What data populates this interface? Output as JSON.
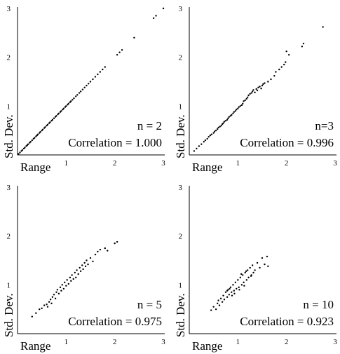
{
  "chart_data": [
    {
      "type": "scatter",
      "panel": "top-left",
      "xlabel": "Range",
      "ylabel": "Std. Dev.",
      "xlim": [
        0,
        3
      ],
      "ylim": [
        0,
        3
      ],
      "xticks": [
        "1",
        "2",
        "3"
      ],
      "yticks": [
        "1",
        "2",
        "3"
      ],
      "annotations": [
        "n = 2",
        "Correlation = 1.000"
      ],
      "grid": false,
      "points": [
        [
          0.02,
          0.02
        ],
        [
          0.05,
          0.05
        ],
        [
          0.08,
          0.08
        ],
        [
          0.1,
          0.1
        ],
        [
          0.13,
          0.13
        ],
        [
          0.15,
          0.15
        ],
        [
          0.18,
          0.18
        ],
        [
          0.2,
          0.2
        ],
        [
          0.22,
          0.22
        ],
        [
          0.25,
          0.25
        ],
        [
          0.27,
          0.27
        ],
        [
          0.3,
          0.3
        ],
        [
          0.33,
          0.33
        ],
        [
          0.35,
          0.35
        ],
        [
          0.38,
          0.38
        ],
        [
          0.4,
          0.4
        ],
        [
          0.42,
          0.42
        ],
        [
          0.45,
          0.45
        ],
        [
          0.47,
          0.47
        ],
        [
          0.5,
          0.5
        ],
        [
          0.52,
          0.52
        ],
        [
          0.55,
          0.55
        ],
        [
          0.57,
          0.57
        ],
        [
          0.6,
          0.6
        ],
        [
          0.62,
          0.62
        ],
        [
          0.65,
          0.65
        ],
        [
          0.67,
          0.67
        ],
        [
          0.7,
          0.7
        ],
        [
          0.72,
          0.72
        ],
        [
          0.75,
          0.75
        ],
        [
          0.78,
          0.78
        ],
        [
          0.8,
          0.8
        ],
        [
          0.83,
          0.83
        ],
        [
          0.85,
          0.85
        ],
        [
          0.88,
          0.88
        ],
        [
          0.9,
          0.9
        ],
        [
          0.93,
          0.93
        ],
        [
          0.95,
          0.95
        ],
        [
          0.98,
          0.98
        ],
        [
          1.0,
          1.0
        ],
        [
          1.03,
          1.03
        ],
        [
          1.05,
          1.05
        ],
        [
          1.08,
          1.08
        ],
        [
          1.1,
          1.1
        ],
        [
          1.13,
          1.13
        ],
        [
          1.16,
          1.16
        ],
        [
          1.2,
          1.2
        ],
        [
          1.23,
          1.23
        ],
        [
          1.27,
          1.27
        ],
        [
          1.3,
          1.3
        ],
        [
          1.34,
          1.34
        ],
        [
          1.38,
          1.38
        ],
        [
          1.42,
          1.42
        ],
        [
          1.46,
          1.46
        ],
        [
          1.5,
          1.5
        ],
        [
          1.55,
          1.55
        ],
        [
          1.6,
          1.6
        ],
        [
          1.65,
          1.65
        ],
        [
          1.7,
          1.7
        ],
        [
          1.75,
          1.75
        ],
        [
          1.8,
          1.8
        ],
        [
          2.05,
          2.05
        ],
        [
          2.1,
          2.1
        ],
        [
          2.15,
          2.15
        ],
        [
          2.4,
          2.4
        ],
        [
          2.8,
          2.8
        ],
        [
          2.85,
          2.85
        ],
        [
          3.0,
          3.0
        ]
      ]
    },
    {
      "type": "scatter",
      "panel": "top-right",
      "xlabel": "Range",
      "ylabel": "Std. Dev.",
      "xlim": [
        0,
        3
      ],
      "ylim": [
        0,
        3
      ],
      "xticks": [
        "1",
        "2",
        "3"
      ],
      "yticks": [
        "1",
        "2",
        "3"
      ],
      "annotations": [
        "n=3",
        "Correlation = 0.996"
      ],
      "grid": false,
      "points": [
        [
          0.1,
          0.08
        ],
        [
          0.15,
          0.13
        ],
        [
          0.2,
          0.18
        ],
        [
          0.25,
          0.22
        ],
        [
          0.3,
          0.27
        ],
        [
          0.33,
          0.3
        ],
        [
          0.37,
          0.33
        ],
        [
          0.4,
          0.37
        ],
        [
          0.43,
          0.4
        ],
        [
          0.46,
          0.42
        ],
        [
          0.5,
          0.45
        ],
        [
          0.52,
          0.48
        ],
        [
          0.55,
          0.5
        ],
        [
          0.58,
          0.53
        ],
        [
          0.6,
          0.56
        ],
        [
          0.63,
          0.58
        ],
        [
          0.66,
          0.6
        ],
        [
          0.68,
          0.63
        ],
        [
          0.7,
          0.65
        ],
        [
          0.72,
          0.68
        ],
        [
          0.75,
          0.7
        ],
        [
          0.78,
          0.72
        ],
        [
          0.8,
          0.75
        ],
        [
          0.82,
          0.78
        ],
        [
          0.85,
          0.8
        ],
        [
          0.87,
          0.82
        ],
        [
          0.9,
          0.85
        ],
        [
          0.92,
          0.88
        ],
        [
          0.95,
          0.9
        ],
        [
          0.97,
          0.93
        ],
        [
          1.0,
          0.95
        ],
        [
          1.02,
          0.98
        ],
        [
          1.05,
          1.0
        ],
        [
          1.08,
          1.02
        ],
        [
          1.1,
          1.05
        ],
        [
          1.12,
          1.1
        ],
        [
          1.15,
          1.12
        ],
        [
          1.18,
          1.15
        ],
        [
          1.2,
          1.18
        ],
        [
          1.22,
          1.22
        ],
        [
          1.25,
          1.25
        ],
        [
          1.28,
          1.27
        ],
        [
          1.3,
          1.3
        ],
        [
          1.32,
          1.33
        ],
        [
          1.35,
          1.28
        ],
        [
          1.38,
          1.35
        ],
        [
          1.4,
          1.32
        ],
        [
          1.42,
          1.38
        ],
        [
          1.45,
          1.4
        ],
        [
          1.48,
          1.36
        ],
        [
          1.5,
          1.42
        ],
        [
          1.52,
          1.45
        ],
        [
          1.55,
          1.47
        ],
        [
          1.62,
          1.5
        ],
        [
          1.68,
          1.55
        ],
        [
          1.75,
          1.62
        ],
        [
          1.78,
          1.7
        ],
        [
          1.85,
          1.75
        ],
        [
          1.9,
          1.8
        ],
        [
          1.95,
          1.85
        ],
        [
          1.98,
          1.9
        ],
        [
          2.0,
          2.12
        ],
        [
          2.05,
          2.05
        ],
        [
          2.32,
          2.22
        ],
        [
          2.35,
          2.28
        ],
        [
          2.75,
          2.62
        ]
      ]
    },
    {
      "type": "scatter",
      "panel": "bottom-left",
      "xlabel": "Range",
      "ylabel": "Std. Dev.",
      "xlim": [
        0,
        3
      ],
      "ylim": [
        0,
        3
      ],
      "xticks": [
        "1",
        "2",
        "3"
      ],
      "yticks": [
        "1",
        "2",
        "3"
      ],
      "annotations": [
        "n = 5",
        "Correlation = 0.975"
      ],
      "grid": false,
      "points": [
        [
          0.3,
          0.35
        ],
        [
          0.38,
          0.42
        ],
        [
          0.45,
          0.5
        ],
        [
          0.5,
          0.52
        ],
        [
          0.55,
          0.58
        ],
        [
          0.6,
          0.6
        ],
        [
          0.62,
          0.55
        ],
        [
          0.65,
          0.65
        ],
        [
          0.68,
          0.7
        ],
        [
          0.7,
          0.62
        ],
        [
          0.72,
          0.75
        ],
        [
          0.75,
          0.8
        ],
        [
          0.78,
          0.72
        ],
        [
          0.8,
          0.85
        ],
        [
          0.82,
          0.9
        ],
        [
          0.85,
          0.82
        ],
        [
          0.88,
          0.95
        ],
        [
          0.9,
          0.88
        ],
        [
          0.92,
          1.0
        ],
        [
          0.95,
          0.92
        ],
        [
          0.97,
          1.05
        ],
        [
          1.0,
          0.98
        ],
        [
          1.02,
          1.1
        ],
        [
          1.05,
          1.02
        ],
        [
          1.08,
          1.15
        ],
        [
          1.1,
          1.08
        ],
        [
          1.12,
          1.2
        ],
        [
          1.15,
          1.12
        ],
        [
          1.18,
          1.25
        ],
        [
          1.2,
          1.15
        ],
        [
          1.22,
          1.3
        ],
        [
          1.25,
          1.22
        ],
        [
          1.28,
          1.35
        ],
        [
          1.3,
          1.28
        ],
        [
          1.33,
          1.4
        ],
        [
          1.35,
          1.32
        ],
        [
          1.38,
          1.45
        ],
        [
          1.4,
          1.38
        ],
        [
          1.42,
          1.5
        ],
        [
          1.45,
          1.42
        ],
        [
          1.5,
          1.55
        ],
        [
          1.55,
          1.48
        ],
        [
          1.6,
          1.62
        ],
        [
          1.65,
          1.68
        ],
        [
          1.7,
          1.72
        ],
        [
          1.8,
          1.75
        ],
        [
          1.85,
          1.7
        ],
        [
          2.0,
          1.85
        ],
        [
          2.05,
          1.88
        ]
      ]
    },
    {
      "type": "scatter",
      "panel": "bottom-right",
      "xlabel": "Range",
      "ylabel": "Std. Dev.",
      "xlim": [
        0,
        3
      ],
      "ylim": [
        0,
        3
      ],
      "xticks": [
        "1",
        "2",
        "3"
      ],
      "yticks": [
        "1",
        "2",
        "3"
      ],
      "annotations": [
        "n = 10",
        "Correlation = 0.923"
      ],
      "grid": false,
      "points": [
        [
          0.45,
          0.48
        ],
        [
          0.5,
          0.55
        ],
        [
          0.55,
          0.5
        ],
        [
          0.58,
          0.62
        ],
        [
          0.6,
          0.68
        ],
        [
          0.62,
          0.58
        ],
        [
          0.65,
          0.72
        ],
        [
          0.68,
          0.65
        ],
        [
          0.7,
          0.78
        ],
        [
          0.72,
          0.7
        ],
        [
          0.75,
          0.85
        ],
        [
          0.78,
          0.75
        ],
        [
          0.8,
          0.9
        ],
        [
          0.82,
          0.8
        ],
        [
          0.85,
          0.95
        ],
        [
          0.87,
          0.85
        ],
        [
          0.9,
          1.0
        ],
        [
          0.92,
          0.88
        ],
        [
          0.95,
          1.05
        ],
        [
          0.97,
          0.92
        ],
        [
          1.0,
          1.1
        ],
        [
          1.02,
          0.95
        ],
        [
          1.05,
          1.15
        ],
        [
          1.08,
          1.0
        ],
        [
          1.1,
          1.2
        ],
        [
          1.12,
          1.05
        ],
        [
          1.15,
          1.25
        ],
        [
          1.18,
          1.1
        ],
        [
          1.2,
          1.3
        ],
        [
          1.22,
          1.15
        ],
        [
          1.25,
          1.35
        ],
        [
          1.28,
          1.2
        ],
        [
          1.3,
          1.4
        ],
        [
          1.32,
          1.25
        ],
        [
          1.35,
          1.3
        ],
        [
          1.4,
          1.45
        ],
        [
          1.45,
          1.35
        ],
        [
          1.5,
          1.55
        ],
        [
          1.55,
          1.42
        ],
        [
          1.6,
          1.58
        ],
        [
          1.62,
          1.38
        ],
        [
          0.88,
          0.78
        ],
        [
          0.93,
          0.82
        ],
        [
          1.03,
          0.9
        ],
        [
          1.13,
          0.98
        ],
        [
          0.78,
          0.88
        ],
        [
          0.83,
          0.92
        ],
        [
          1.07,
          1.22
        ],
        [
          1.17,
          1.28
        ],
        [
          1.27,
          1.18
        ]
      ]
    }
  ]
}
